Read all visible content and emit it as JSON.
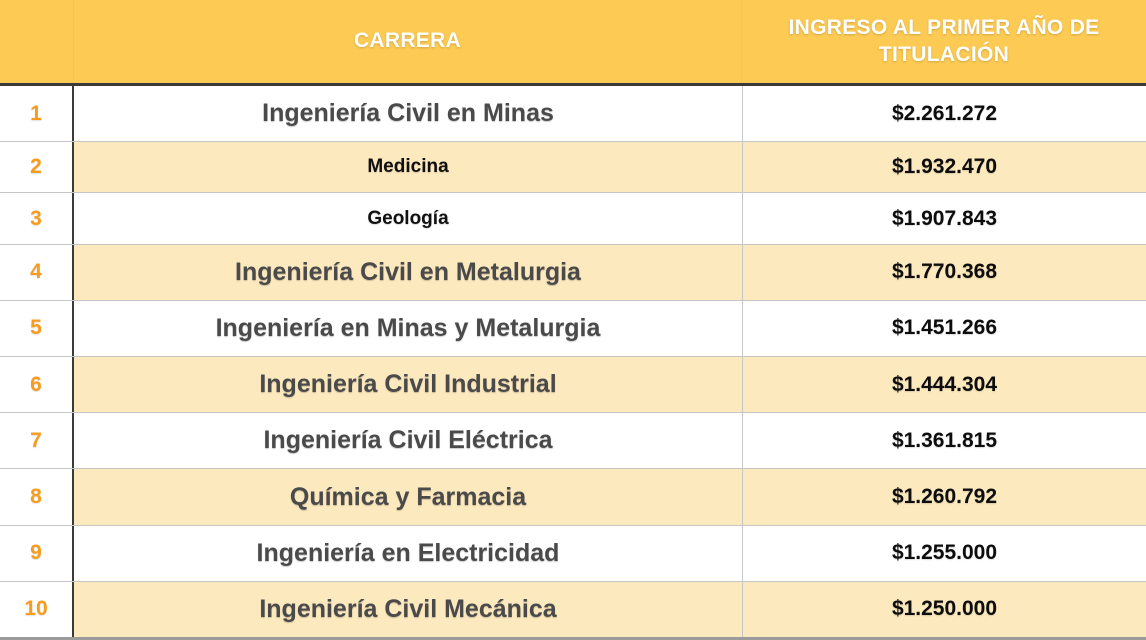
{
  "colors": {
    "header_bg": "#FDCB53",
    "header_text": "#FFFFFF",
    "row_bg": "#FFFFFF",
    "row_alt_bg": "#FDE9BE",
    "rank_text": "#F99B1D",
    "career_text_large": "#4A4A4A",
    "career_text_small": "#111111",
    "income_text": "#0D0D0D",
    "divider_dark": "#3A3A3A",
    "divider_light": "#C6C6C6",
    "bottom_bar": "#9B9B9B"
  },
  "table": {
    "header": {
      "rank": "",
      "career": "CARRERA",
      "income": "INGRESO AL PRIMER AÑO DE TITULACIÓN"
    },
    "rows": [
      {
        "rank": "1",
        "career": "Ingeniería Civil en Minas",
        "income": "$2.261.272",
        "emphasis": "large"
      },
      {
        "rank": "2",
        "career": "Medicina",
        "income": "$1.932.470",
        "emphasis": "small"
      },
      {
        "rank": "3",
        "career": "Geología",
        "income": "$1.907.843",
        "emphasis": "small"
      },
      {
        "rank": "4",
        "career": "Ingeniería Civil en Metalurgia",
        "income": "$1.770.368",
        "emphasis": "large"
      },
      {
        "rank": "5",
        "career": "Ingeniería en Minas y Metalurgia",
        "income": "$1.451.266",
        "emphasis": "large"
      },
      {
        "rank": "6",
        "career": "Ingeniería Civil Industrial",
        "income": "$1.444.304",
        "emphasis": "large"
      },
      {
        "rank": "7",
        "career": "Ingeniería Civil Eléctrica",
        "income": "$1.361.815",
        "emphasis": "large"
      },
      {
        "rank": "8",
        "career": "Química y Farmacia",
        "income": "$1.260.792",
        "emphasis": "large"
      },
      {
        "rank": "9",
        "career": "Ingeniería en Electricidad",
        "income": "$1.255.000",
        "emphasis": "large"
      },
      {
        "rank": "10",
        "career": "Ingeniería Civil Mecánica",
        "income": "$1.250.000",
        "emphasis": "large"
      }
    ]
  },
  "chart_data": {
    "type": "table",
    "columns": [
      "CARRERA",
      "INGRESO AL PRIMER AÑO DE TITULACIÓN"
    ],
    "ranks": [
      1,
      2,
      3,
      4,
      5,
      6,
      7,
      8,
      9,
      10
    ],
    "categories": [
      "Ingeniería Civil en Minas",
      "Medicina",
      "Geología",
      "Ingeniería Civil en Metalurgia",
      "Ingeniería en Minas y Metalurgia",
      "Ingeniería Civil Industrial",
      "Ingeniería Civil Eléctrica",
      "Química y Farmacia",
      "Ingeniería en Electricidad",
      "Ingeniería Civil Mecánica"
    ],
    "values": [
      2261272,
      1932470,
      1907843,
      1770368,
      1451266,
      1444304,
      1361815,
      1260792,
      1255000,
      1250000
    ],
    "value_labels": [
      "$2.261.272",
      "$1.932.470",
      "$1.907.843",
      "$1.770.368",
      "$1.451.266",
      "$1.444.304",
      "$1.361.815",
      "$1.260.792",
      "$1.255.000",
      "$1.250.000"
    ],
    "currency": "$"
  }
}
